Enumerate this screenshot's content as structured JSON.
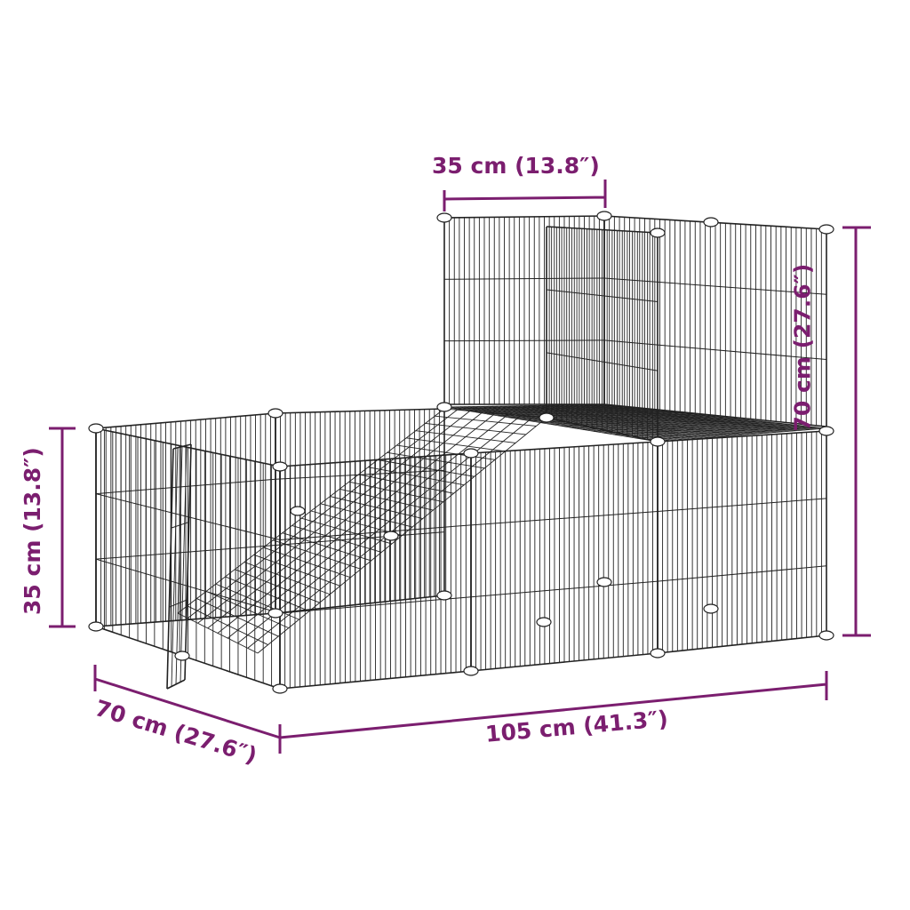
{
  "colors": {
    "dimension": "#7b1e6f",
    "wire": "#222222"
  },
  "dimensions": {
    "top_width": "35 cm (13.8″)",
    "total_height": "70 cm (27.6″)",
    "lower_height": "35 cm (13.8″)",
    "depth": "70 cm (27.6″)",
    "length": "105 cm (41.3″)"
  }
}
